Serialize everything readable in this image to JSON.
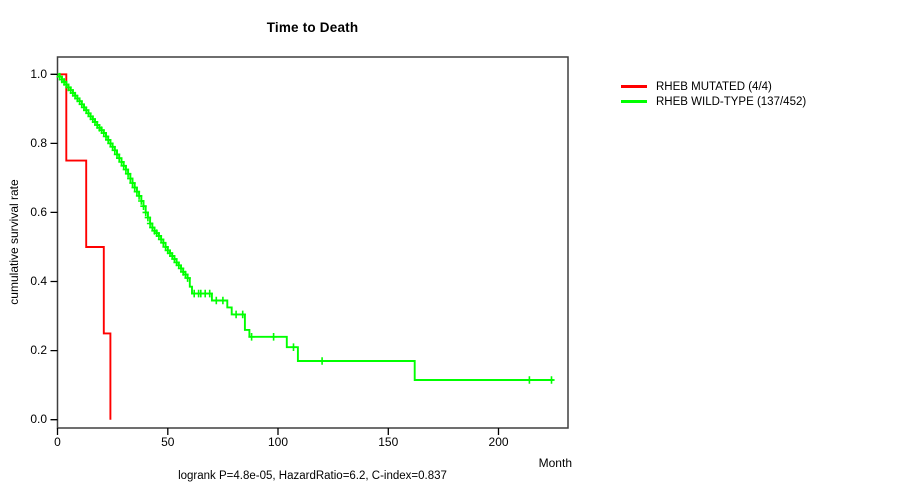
{
  "annotation": {
    "text": "logrank P=4.8e-05, HazardRatio=6.2, C-index=0.837"
  },
  "chart_data": {
    "type": "line",
    "subtype": "kaplan-meier-step",
    "title": "Time to Death",
    "xlabel": "Month",
    "ylabel": "cumulative survival rate",
    "xlim": [
      0,
      231.5
    ],
    "ylim": [
      -0.024,
      1.05
    ],
    "x_ticks": [
      0,
      50,
      100,
      150,
      200
    ],
    "y_ticks": [
      0,
      0.2,
      0.4,
      0.6,
      0.8,
      1
    ],
    "grid": false,
    "legend_position": "right-outside",
    "axis_color": "#000000",
    "border_color": "#3f3f3f",
    "series": [
      {
        "name": "RHEB MUTATED (4/4)",
        "color": "#ff0000",
        "steps": [
          [
            0,
            1.0
          ],
          [
            4,
            0.75
          ],
          [
            13,
            0.5
          ],
          [
            21,
            0.25
          ],
          [
            24,
            0.0
          ]
        ],
        "end_month": null,
        "censor_months": []
      },
      {
        "name": "RHEB WILD-TYPE (137/452)",
        "color": "#00ff00",
        "steps": [
          [
            0,
            1.0
          ],
          [
            1,
            0.993
          ],
          [
            2,
            0.985
          ],
          [
            3,
            0.978
          ],
          [
            4,
            0.97
          ],
          [
            5,
            0.962
          ],
          [
            6,
            0.954
          ],
          [
            7,
            0.946
          ],
          [
            8,
            0.938
          ],
          [
            9,
            0.93
          ],
          [
            10,
            0.922
          ],
          [
            11,
            0.913
          ],
          [
            12,
            0.904
          ],
          [
            13,
            0.896
          ],
          [
            14,
            0.887
          ],
          [
            15,
            0.878
          ],
          [
            16,
            0.87
          ],
          [
            17,
            0.862
          ],
          [
            18,
            0.853
          ],
          [
            19,
            0.845
          ],
          [
            20,
            0.838
          ],
          [
            21,
            0.83
          ],
          [
            22,
            0.82
          ],
          [
            23,
            0.81
          ],
          [
            24,
            0.8
          ],
          [
            25,
            0.79
          ],
          [
            26,
            0.78
          ],
          [
            27,
            0.768
          ],
          [
            28,
            0.757
          ],
          [
            29,
            0.746
          ],
          [
            30,
            0.735
          ],
          [
            31,
            0.724
          ],
          [
            32,
            0.712
          ],
          [
            33,
            0.698
          ],
          [
            34,
            0.685
          ],
          [
            35,
            0.672
          ],
          [
            36,
            0.66
          ],
          [
            37,
            0.648
          ],
          [
            38,
            0.633
          ],
          [
            39,
            0.618
          ],
          [
            40,
            0.6
          ],
          [
            41,
            0.585
          ],
          [
            42,
            0.568
          ],
          [
            43,
            0.556
          ],
          [
            44,
            0.547
          ],
          [
            45,
            0.54
          ],
          [
            46,
            0.532
          ],
          [
            47,
            0.522
          ],
          [
            48,
            0.512
          ],
          [
            49,
            0.5
          ],
          [
            50,
            0.49
          ],
          [
            51,
            0.482
          ],
          [
            52,
            0.474
          ],
          [
            53,
            0.465
          ],
          [
            54,
            0.455
          ],
          [
            55,
            0.447
          ],
          [
            56,
            0.438
          ],
          [
            57,
            0.428
          ],
          [
            58,
            0.42
          ],
          [
            59,
            0.41
          ],
          [
            60,
            0.385
          ],
          [
            61,
            0.365
          ],
          [
            70,
            0.345
          ],
          [
            77,
            0.325
          ],
          [
            79,
            0.305
          ],
          [
            85,
            0.26
          ],
          [
            87,
            0.24
          ],
          [
            104,
            0.21
          ],
          [
            109,
            0.17
          ],
          [
            162,
            0.115
          ]
        ],
        "end_month": 225,
        "censor_months": [
          1,
          2,
          3,
          4,
          5,
          6,
          7,
          8,
          9,
          10,
          11,
          12,
          13,
          14,
          15,
          16,
          17,
          18,
          19,
          20,
          21,
          22,
          23,
          24,
          25,
          26,
          27,
          28,
          29,
          30,
          31,
          32,
          33,
          34,
          35,
          36,
          37,
          38,
          39,
          40,
          41,
          42,
          43,
          44,
          45,
          46,
          47,
          48,
          49,
          50,
          51,
          52,
          53,
          54,
          55,
          56,
          57,
          58,
          59,
          62,
          64,
          65,
          67,
          69,
          72,
          75,
          81,
          84,
          88,
          98,
          107,
          120,
          214,
          224
        ]
      }
    ]
  }
}
